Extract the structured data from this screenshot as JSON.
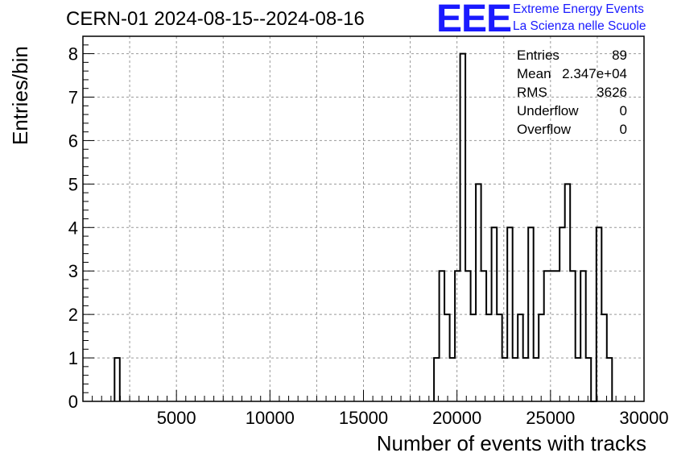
{
  "chart_data": {
    "type": "bar",
    "title": "CERN-01 2024-08-15--2024-08-16",
    "xlabel": "Number of events with tracks",
    "ylabel": "Entries/bin",
    "xlim": [
      0,
      30000
    ],
    "ylim": [
      0,
      8.4
    ],
    "bin_width": 280,
    "x_ticks": [
      5000,
      10000,
      15000,
      20000,
      25000,
      30000
    ],
    "x_tick_labels": [
      "5000",
      "10000",
      "15000",
      "20000",
      "25000",
      "30000"
    ],
    "y_ticks": [
      0,
      1,
      2,
      3,
      4,
      5,
      6,
      7,
      8
    ],
    "y_tick_labels": [
      "0",
      "1",
      "2",
      "3",
      "4",
      "5",
      "6",
      "7",
      "8"
    ],
    "grid": true,
    "bins": [
      {
        "x": 1690,
        "y": 1
      },
      {
        "x": 18770,
        "y": 1
      },
      {
        "x": 19050,
        "y": 3
      },
      {
        "x": 19330,
        "y": 2
      },
      {
        "x": 19610,
        "y": 1
      },
      {
        "x": 19890,
        "y": 3
      },
      {
        "x": 20170,
        "y": 8
      },
      {
        "x": 20450,
        "y": 3
      },
      {
        "x": 20730,
        "y": 2
      },
      {
        "x": 21010,
        "y": 5
      },
      {
        "x": 21290,
        "y": 3
      },
      {
        "x": 21570,
        "y": 2
      },
      {
        "x": 21850,
        "y": 4
      },
      {
        "x": 22130,
        "y": 2
      },
      {
        "x": 22410,
        "y": 1
      },
      {
        "x": 22690,
        "y": 4
      },
      {
        "x": 22970,
        "y": 1
      },
      {
        "x": 23250,
        "y": 2
      },
      {
        "x": 23530,
        "y": 1
      },
      {
        "x": 23810,
        "y": 4
      },
      {
        "x": 24090,
        "y": 1
      },
      {
        "x": 24370,
        "y": 2
      },
      {
        "x": 24650,
        "y": 3
      },
      {
        "x": 24930,
        "y": 3
      },
      {
        "x": 25210,
        "y": 3
      },
      {
        "x": 25490,
        "y": 4
      },
      {
        "x": 25770,
        "y": 5
      },
      {
        "x": 26050,
        "y": 3
      },
      {
        "x": 26330,
        "y": 1
      },
      {
        "x": 26610,
        "y": 3
      },
      {
        "x": 26890,
        "y": 1
      },
      {
        "x": 27170,
        "y": 0
      },
      {
        "x": 27450,
        "y": 4
      },
      {
        "x": 27730,
        "y": 2
      },
      {
        "x": 28010,
        "y": 1
      }
    ],
    "stats": [
      {
        "label": "Entries",
        "value": "89"
      },
      {
        "label": "Mean",
        "value": "2.347e+04"
      },
      {
        "label": "RMS",
        "value": "3626"
      },
      {
        "label": "Underflow",
        "value": "0"
      },
      {
        "label": "Overflow",
        "value": "0"
      }
    ],
    "colors": {
      "line": "#000000",
      "grid": "#999999",
      "logo": "#1a1aff"
    }
  },
  "logo": {
    "mark": "EEE",
    "line1": "Extreme Energy Events",
    "line2": "La Scienza nelle Scuole"
  }
}
